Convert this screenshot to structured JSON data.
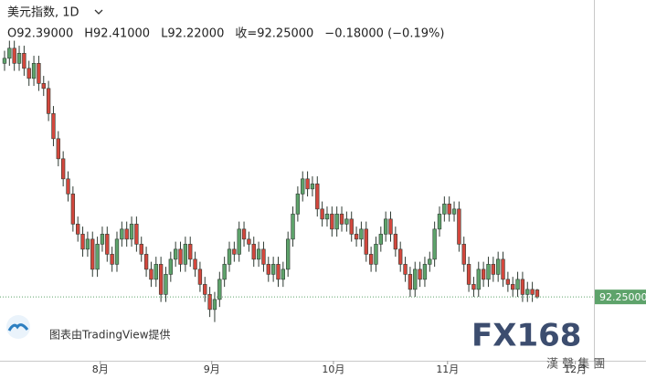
{
  "chart_data": {
    "type": "candlestick",
    "title": "美元指数, 1D",
    "ohlc_labels": [
      "O92.39000",
      "H92.41000",
      "L92.22000",
      "收=92.25000",
      "−0.18000 (−0.19%)"
    ],
    "watermark": "图表由TradingView提供",
    "logo": "FX168",
    "logo_sub": "漢 聲 集 團",
    "up_color": "#5ea36b",
    "down_color": "#d3473d",
    "border_color": "#2f3b33",
    "ylim": [
      90.98,
      98.16
    ],
    "xlim": [
      -0.93,
      120.6
    ],
    "xticks": [
      {
        "value": 19.6,
        "label": "8月"
      },
      {
        "value": 42.4,
        "label": "9月"
      },
      {
        "value": 67.3,
        "label": "10月"
      },
      {
        "value": 90.65,
        "label": "11月"
      },
      {
        "value": 116.8,
        "label": "12月"
      }
    ],
    "last_price": {
      "value": 92.25,
      "label": "92.25000"
    },
    "open": [
      96.9,
      97.0,
      97.2,
      96.9,
      97.1,
      96.8,
      96.6,
      96.9,
      96.5,
      96.4,
      95.9,
      95.4,
      95.0,
      94.6,
      94.3,
      93.7,
      93.5,
      93.2,
      93.4,
      92.8,
      93.3,
      93.5,
      93.1,
      92.9,
      93.4,
      93.6,
      93.4,
      93.7,
      93.3,
      93.1,
      92.8,
      92.6,
      92.9,
      92.3,
      92.7,
      93.0,
      93.2,
      92.9,
      93.3,
      93.0,
      92.8,
      92.5,
      92.3,
      92.0,
      92.2,
      92.6,
      92.9,
      93.2,
      93.1,
      93.6,
      93.4,
      93.3,
      93.0,
      93.2,
      92.9,
      92.7,
      92.9,
      92.6,
      92.8,
      93.4,
      93.9,
      94.3,
      94.6,
      94.4,
      94.5,
      94.0,
      93.8,
      93.9,
      93.6,
      93.9,
      93.7,
      93.8,
      93.5,
      93.4,
      93.6,
      93.1,
      92.9,
      93.3,
      93.5,
      93.8,
      93.5,
      93.2,
      92.9,
      92.7,
      92.4,
      92.8,
      92.6,
      92.9,
      93.0,
      93.6,
      93.9,
      94.1,
      93.9,
      94.0,
      93.3,
      92.9,
      92.5,
      92.4,
      92.8,
      92.6,
      92.9,
      92.7,
      93.0,
      92.6,
      92.5,
      92.4,
      92.6,
      92.3,
      92.4,
      92.39
    ],
    "high": [
      97.15,
      97.35,
      97.35,
      97.25,
      97.25,
      96.95,
      97.05,
      97.05,
      96.65,
      96.55,
      96.05,
      95.55,
      95.15,
      94.75,
      94.45,
      93.85,
      93.65,
      93.55,
      93.55,
      93.45,
      93.65,
      93.65,
      93.25,
      93.55,
      93.75,
      93.75,
      93.85,
      93.85,
      93.45,
      93.25,
      92.95,
      93.05,
      93.05,
      92.85,
      93.15,
      93.35,
      93.35,
      93.45,
      93.45,
      93.15,
      92.95,
      92.65,
      92.45,
      92.35,
      92.75,
      93.05,
      93.35,
      93.35,
      93.75,
      93.75,
      93.55,
      93.45,
      93.35,
      93.35,
      93.05,
      93.05,
      93.05,
      92.95,
      93.55,
      94.05,
      94.45,
      94.75,
      94.75,
      94.65,
      94.65,
      94.15,
      94.05,
      94.05,
      94.05,
      94.05,
      93.95,
      93.95,
      93.65,
      93.75,
      93.75,
      93.25,
      93.45,
      93.65,
      93.95,
      93.95,
      93.65,
      93.35,
      93.05,
      92.85,
      92.95,
      92.95,
      93.05,
      93.15,
      93.75,
      94.05,
      94.25,
      94.25,
      94.15,
      94.15,
      93.45,
      93.05,
      92.65,
      92.95,
      92.95,
      93.05,
      93.05,
      93.15,
      93.15,
      92.75,
      92.65,
      92.75,
      92.75,
      92.55,
      92.55,
      92.41
    ],
    "low": [
      96.75,
      96.85,
      96.75,
      96.75,
      96.65,
      96.45,
      96.45,
      96.35,
      96.25,
      95.75,
      95.25,
      94.85,
      94.45,
      94.15,
      93.55,
      93.35,
      93.05,
      93.05,
      92.65,
      92.65,
      93.15,
      92.95,
      92.75,
      92.75,
      93.25,
      93.25,
      93.25,
      93.15,
      92.95,
      92.65,
      92.45,
      92.45,
      92.15,
      92.15,
      92.55,
      92.85,
      92.75,
      92.75,
      92.85,
      92.65,
      92.35,
      92.15,
      91.85,
      91.75,
      92.05,
      92.45,
      92.75,
      92.95,
      92.95,
      93.25,
      93.15,
      92.85,
      92.85,
      92.75,
      92.55,
      92.55,
      92.45,
      92.45,
      92.65,
      93.25,
      93.75,
      94.15,
      94.25,
      94.25,
      93.85,
      93.65,
      93.65,
      93.45,
      93.45,
      93.55,
      93.55,
      93.35,
      93.25,
      93.25,
      92.95,
      92.75,
      92.75,
      93.15,
      93.35,
      93.35,
      93.05,
      92.75,
      92.55,
      92.25,
      92.25,
      92.45,
      92.45,
      92.75,
      92.85,
      93.45,
      93.75,
      93.75,
      93.75,
      93.15,
      92.75,
      92.35,
      92.25,
      92.25,
      92.45,
      92.45,
      92.55,
      92.55,
      92.45,
      92.35,
      92.25,
      92.25,
      92.15,
      92.15,
      92.15,
      92.22
    ],
    "close": [
      97.0,
      97.2,
      96.9,
      97.1,
      96.8,
      96.6,
      96.9,
      96.5,
      96.4,
      95.9,
      95.4,
      95.0,
      94.6,
      94.3,
      93.7,
      93.5,
      93.2,
      93.4,
      92.8,
      93.3,
      93.5,
      93.1,
      92.9,
      93.4,
      93.6,
      93.4,
      93.7,
      93.3,
      93.1,
      92.8,
      92.6,
      92.9,
      92.3,
      92.7,
      93.0,
      93.2,
      92.9,
      93.3,
      93.0,
      92.8,
      92.5,
      92.3,
      92.0,
      92.2,
      92.6,
      92.9,
      93.2,
      93.1,
      93.6,
      93.4,
      93.3,
      93.0,
      93.2,
      92.9,
      92.7,
      92.9,
      92.6,
      92.8,
      93.4,
      93.9,
      94.3,
      94.6,
      94.4,
      94.5,
      94.0,
      93.8,
      93.9,
      93.6,
      93.9,
      93.7,
      93.8,
      93.5,
      93.4,
      93.6,
      93.1,
      92.9,
      93.3,
      93.5,
      93.8,
      93.5,
      93.2,
      92.9,
      92.7,
      92.4,
      92.8,
      92.6,
      92.9,
      93.0,
      93.6,
      93.9,
      94.1,
      93.9,
      94.0,
      93.3,
      92.9,
      92.5,
      92.4,
      92.8,
      92.6,
      92.9,
      92.7,
      93.0,
      92.6,
      92.5,
      92.4,
      92.6,
      92.3,
      92.4,
      92.3,
      92.25
    ]
  }
}
